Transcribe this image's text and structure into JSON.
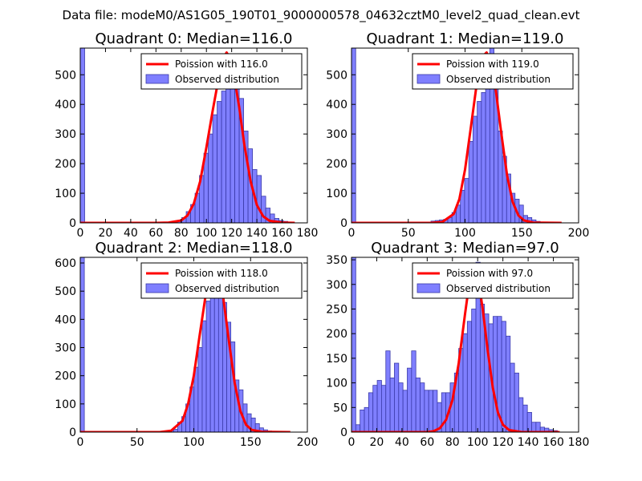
{
  "suptitle": "Data file: modeM0/AS1G05_190T01_9000000578_04632cztM0_level2_quad_clean.evt",
  "colors": {
    "observed_fill": "#7f7fff",
    "observed_edge": "#3a3aa8",
    "poisson_line": "#ff0000"
  },
  "chart_data": [
    {
      "type": "bar",
      "title": "Quadrant 0: Median=116.0",
      "median": 116.0,
      "legend_location": "upper-right",
      "legend": [
        "Poission with 116.0",
        "Observed distribution"
      ],
      "xlim": [
        0,
        180
      ],
      "ylim": [
        0,
        590
      ],
      "xticks": [
        0,
        20,
        40,
        60,
        80,
        100,
        120,
        140,
        160,
        180
      ],
      "xtick_labels": [
        "0",
        "20",
        "40",
        "60",
        "80",
        "100",
        "120",
        "140",
        "160",
        "180"
      ],
      "yticks": [
        0,
        100,
        200,
        300,
        400,
        500
      ],
      "ytick_labels": [
        "0",
        "100",
        "200",
        "300",
        "400",
        "500"
      ],
      "bin_width": 3.5,
      "bins": [
        [
          0,
          590
        ],
        [
          70,
          3
        ],
        [
          73.5,
          4
        ],
        [
          77,
          8
        ],
        [
          80.5,
          18
        ],
        [
          84,
          38
        ],
        [
          87.5,
          62
        ],
        [
          91,
          100
        ],
        [
          94.5,
          160
        ],
        [
          98,
          235
        ],
        [
          101.5,
          300
        ],
        [
          105,
          365
        ],
        [
          108.5,
          410
        ],
        [
          112,
          445
        ],
        [
          115.5,
          520
        ],
        [
          119,
          545
        ],
        [
          122.5,
          510
        ],
        [
          126,
          420
        ],
        [
          129.5,
          310
        ],
        [
          133,
          250
        ],
        [
          136.5,
          180
        ],
        [
          140,
          160
        ],
        [
          143.5,
          90
        ],
        [
          147,
          50
        ],
        [
          150.5,
          30
        ],
        [
          154,
          15
        ],
        [
          157.5,
          8
        ],
        [
          161,
          5
        ],
        [
          164.5,
          3
        ]
      ],
      "poisson_curve": [
        [
          0,
          0
        ],
        [
          60,
          0
        ],
        [
          70,
          1
        ],
        [
          80,
          8
        ],
        [
          85,
          25
        ],
        [
          90,
          65
        ],
        [
          95,
          140
        ],
        [
          100,
          255
        ],
        [
          105,
          380
        ],
        [
          110,
          495
        ],
        [
          113,
          555
        ],
        [
          116,
          575
        ],
        [
          119,
          555
        ],
        [
          122,
          495
        ],
        [
          126,
          390
        ],
        [
          130,
          265
        ],
        [
          135,
          140
        ],
        [
          140,
          60
        ],
        [
          145,
          22
        ],
        [
          150,
          7
        ],
        [
          160,
          1
        ],
        [
          170,
          0
        ]
      ]
    },
    {
      "type": "bar",
      "title": "Quadrant 1: Median=119.0",
      "median": 119.0,
      "legend_location": "upper-right",
      "legend": [
        "Poission with 119.0",
        "Observed distribution"
      ],
      "xlim": [
        0,
        200
      ],
      "ylim": [
        0,
        590
      ],
      "xticks": [
        0,
        50,
        100,
        150,
        200
      ],
      "xtick_labels": [
        "0",
        "50",
        "100",
        "150",
        "200"
      ],
      "yticks": [
        0,
        100,
        200,
        300,
        400,
        500
      ],
      "ytick_labels": [
        "0",
        "100",
        "200",
        "300",
        "400",
        "500"
      ],
      "bin_width": 3.7,
      "bins": [
        [
          0,
          590
        ],
        [
          70,
          6
        ],
        [
          73.7,
          8
        ],
        [
          77.4,
          10
        ],
        [
          81.1,
          12
        ],
        [
          84.8,
          18
        ],
        [
          88.5,
          35
        ],
        [
          92.2,
          60
        ],
        [
          95.9,
          110
        ],
        [
          99.6,
          150
        ],
        [
          103.3,
          275
        ],
        [
          107,
          360
        ],
        [
          110.7,
          410
        ],
        [
          114.4,
          440
        ],
        [
          118.1,
          540
        ],
        [
          121.8,
          590
        ],
        [
          125.5,
          500
        ],
        [
          129.2,
          310
        ],
        [
          132.9,
          225
        ],
        [
          136.6,
          165
        ],
        [
          140.3,
          100
        ],
        [
          144,
          80
        ],
        [
          147.7,
          60
        ],
        [
          151.4,
          25
        ],
        [
          155.1,
          18
        ],
        [
          158.8,
          10
        ],
        [
          162.5,
          5
        ]
      ],
      "poisson_curve": [
        [
          0,
          0
        ],
        [
          70,
          0
        ],
        [
          80,
          3
        ],
        [
          90,
          30
        ],
        [
          95,
          80
        ],
        [
          100,
          180
        ],
        [
          105,
          320
        ],
        [
          110,
          460
        ],
        [
          115,
          560
        ],
        [
          119,
          575
        ],
        [
          123,
          540
        ],
        [
          127,
          450
        ],
        [
          132,
          300
        ],
        [
          137,
          160
        ],
        [
          142,
          70
        ],
        [
          147,
          25
        ],
        [
          152,
          8
        ],
        [
          160,
          1
        ],
        [
          185,
          0
        ]
      ]
    },
    {
      "type": "bar",
      "title": "Quadrant 2: Median=118.0",
      "median": 118.0,
      "legend_location": "upper-right",
      "legend": [
        "Poission with 118.0",
        "Observed distribution"
      ],
      "xlim": [
        0,
        200
      ],
      "ylim": [
        0,
        620
      ],
      "xticks": [
        0,
        50,
        100,
        150,
        200
      ],
      "xtick_labels": [
        "0",
        "50",
        "100",
        "150",
        "200"
      ],
      "yticks": [
        0,
        100,
        200,
        300,
        400,
        500,
        600
      ],
      "ytick_labels": [
        "0",
        "100",
        "200",
        "300",
        "400",
        "500",
        "600"
      ],
      "bin_width": 3.6,
      "bins": [
        [
          0,
          620
        ],
        [
          75,
          3
        ],
        [
          78.6,
          6
        ],
        [
          82.2,
          10
        ],
        [
          85.8,
          35
        ],
        [
          89.4,
          55
        ],
        [
          93,
          100
        ],
        [
          96.6,
          160
        ],
        [
          100.2,
          230
        ],
        [
          103.8,
          300
        ],
        [
          107.4,
          395
        ],
        [
          111,
          465
        ],
        [
          114.6,
          510
        ],
        [
          118.2,
          555
        ],
        [
          121.8,
          520
        ],
        [
          125.4,
          460
        ],
        [
          129,
          390
        ],
        [
          132.6,
          320
        ],
        [
          136.2,
          185
        ],
        [
          139.8,
          150
        ],
        [
          143.4,
          100
        ],
        [
          147,
          65
        ],
        [
          150.6,
          50
        ],
        [
          154.2,
          30
        ],
        [
          157.8,
          15
        ],
        [
          161.4,
          8
        ],
        [
          165,
          4
        ]
      ],
      "poisson_curve": [
        [
          0,
          0
        ],
        [
          70,
          0
        ],
        [
          80,
          5
        ],
        [
          90,
          40
        ],
        [
          95,
          100
        ],
        [
          100,
          200
        ],
        [
          105,
          340
        ],
        [
          110,
          475
        ],
        [
          114,
          565
        ],
        [
          118,
          595
        ],
        [
          122,
          565
        ],
        [
          126,
          475
        ],
        [
          131,
          320
        ],
        [
          136,
          175
        ],
        [
          141,
          75
        ],
        [
          146,
          26
        ],
        [
          151,
          8
        ],
        [
          160,
          1
        ],
        [
          185,
          0
        ]
      ]
    },
    {
      "type": "bar",
      "title": "Quadrant 3: Median=97.0",
      "median": 97.0,
      "legend_location": "upper-right",
      "legend": [
        "Poission with 97.0",
        "Observed distribution"
      ],
      "xlim": [
        0,
        180
      ],
      "ylim": [
        0,
        355
      ],
      "xticks": [
        0,
        20,
        40,
        60,
        80,
        100,
        120,
        140,
        160,
        180
      ],
      "xtick_labels": [
        "0",
        "20",
        "40",
        "60",
        "80",
        "100",
        "120",
        "140",
        "160",
        "180"
      ],
      "yticks": [
        0,
        50,
        100,
        150,
        200,
        250,
        300,
        350
      ],
      "ytick_labels": [
        "0",
        "50",
        "100",
        "150",
        "200",
        "250",
        "300",
        "350"
      ],
      "bin_width": 3.4,
      "bins": [
        [
          0,
          355
        ],
        [
          3.4,
          15
        ],
        [
          6.8,
          45
        ],
        [
          10.2,
          50
        ],
        [
          13.6,
          80
        ],
        [
          17,
          95
        ],
        [
          20.4,
          105
        ],
        [
          23.8,
          95
        ],
        [
          27.2,
          165
        ],
        [
          30.6,
          110
        ],
        [
          34,
          140
        ],
        [
          37.4,
          100
        ],
        [
          40.8,
          85
        ],
        [
          44.2,
          130
        ],
        [
          47.6,
          165
        ],
        [
          51,
          110
        ],
        [
          54.4,
          100
        ],
        [
          57.8,
          85
        ],
        [
          61.2,
          85
        ],
        [
          64.6,
          85
        ],
        [
          68,
          60
        ],
        [
          71.4,
          80
        ],
        [
          74.8,
          80
        ],
        [
          78.2,
          100
        ],
        [
          81.6,
          120
        ],
        [
          85,
          170
        ],
        [
          88.4,
          200
        ],
        [
          91.8,
          225
        ],
        [
          95.2,
          250
        ],
        [
          98.6,
          345
        ],
        [
          102,
          260
        ],
        [
          105.4,
          240
        ],
        [
          108.8,
          220
        ],
        [
          112.2,
          235
        ],
        [
          115.6,
          235
        ],
        [
          119,
          225
        ],
        [
          122.4,
          195
        ],
        [
          125.8,
          140
        ],
        [
          129.2,
          120
        ],
        [
          132.6,
          70
        ],
        [
          136,
          55
        ],
        [
          139.4,
          40
        ],
        [
          142.8,
          20
        ],
        [
          146.2,
          20
        ],
        [
          149.6,
          10
        ],
        [
          153,
          8
        ],
        [
          156.4,
          5
        ],
        [
          159.8,
          3
        ]
      ],
      "poisson_curve": [
        [
          0,
          0
        ],
        [
          60,
          0
        ],
        [
          65,
          2
        ],
        [
          70,
          8
        ],
        [
          75,
          25
        ],
        [
          80,
          65
        ],
        [
          85,
          140
        ],
        [
          90,
          240
        ],
        [
          94,
          315
        ],
        [
          97,
          340
        ],
        [
          100,
          320
        ],
        [
          104,
          250
        ],
        [
          108,
          165
        ],
        [
          112,
          90
        ],
        [
          116,
          40
        ],
        [
          120,
          15
        ],
        [
          125,
          4
        ],
        [
          135,
          0
        ],
        [
          165,
          0
        ]
      ]
    }
  ]
}
